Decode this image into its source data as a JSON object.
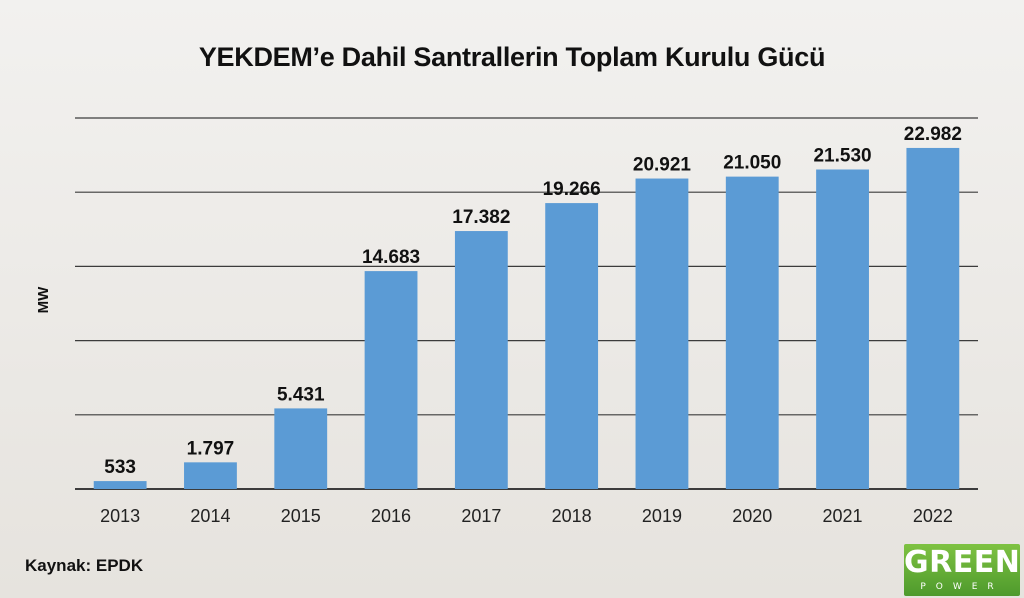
{
  "source_note": "Kaynak: EPDK",
  "logo": {
    "word": "GREEN",
    "sub": "POWER"
  },
  "colors": {
    "bar": "#5b9bd5",
    "grid": "#3c3c3c",
    "text": "#111111",
    "logo": "#5fae34"
  },
  "chart_data": {
    "type": "bar",
    "title": "YEKDEM’e Dahil Santrallerin Toplam Kurulu Gücü",
    "xlabel": "",
    "ylabel": "MW",
    "ylim": [
      0,
      25000
    ],
    "grid": true,
    "categories": [
      "2013",
      "2014",
      "2015",
      "2016",
      "2017",
      "2018",
      "2019",
      "2020",
      "2021",
      "2022"
    ],
    "values": [
      533,
      1797,
      5431,
      14683,
      17382,
      19266,
      20921,
      21050,
      21530,
      22982
    ],
    "value_labels": [
      "533",
      "1.797",
      "5.431",
      "14.683",
      "17.382",
      "19.266",
      "20.921",
      "21.050",
      "21.530",
      "22.982"
    ]
  }
}
